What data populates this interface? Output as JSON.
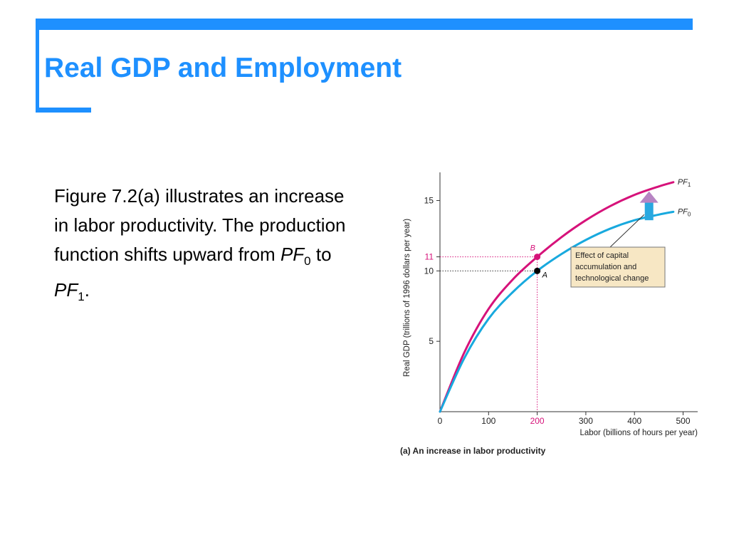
{
  "slide": {
    "title": "Real GDP and Employment",
    "body": {
      "text": "Figure 7.2(a) illustrates an increase in labor productivity. The production function shifts upward from",
      "pf0_base": "PF",
      "pf0_sub": "0",
      "connector": "to",
      "pf1_base": "PF",
      "pf1_sub": "1",
      "end": "."
    }
  },
  "colors": {
    "accent": "#1e90ff",
    "pf1": "#d6127a",
    "pf0": "#18a9de",
    "annotation_fill": "#f7e7c4",
    "arrow_fill": "#29a8e0",
    "arrow_head": "#b784c3"
  },
  "chart_data": {
    "type": "line",
    "caption": "(a) An increase in labor productivity",
    "xlabel": "Labor (billions of hours per year)",
    "ylabel": "Real GDP (trillions of 1996 dollars per year)",
    "xlim": [
      0,
      530
    ],
    "ylim": [
      0,
      17
    ],
    "x_ticks": [
      0,
      100,
      200,
      300,
      400,
      500
    ],
    "y_ticks": [
      5,
      10,
      11,
      15
    ],
    "grid": false,
    "series": [
      {
        "name": "PF1",
        "label_base": "PF",
        "label_sub": "1",
        "color": "#d6127a",
        "points": [
          [
            0,
            0
          ],
          [
            50,
            4.2
          ],
          [
            100,
            7.3
          ],
          [
            150,
            9.4
          ],
          [
            200,
            11
          ],
          [
            250,
            12.4
          ],
          [
            300,
            13.6
          ],
          [
            350,
            14.6
          ],
          [
            400,
            15.4
          ],
          [
            450,
            16.0
          ],
          [
            480,
            16.3
          ]
        ]
      },
      {
        "name": "PF0",
        "label_base": "PF",
        "label_sub": "0",
        "color": "#18a9de",
        "points": [
          [
            0,
            0
          ],
          [
            50,
            3.8
          ],
          [
            100,
            6.6
          ],
          [
            150,
            8.5
          ],
          [
            200,
            10
          ],
          [
            250,
            11.2
          ],
          [
            300,
            12.2
          ],
          [
            350,
            13.0
          ],
          [
            400,
            13.6
          ],
          [
            450,
            14.0
          ],
          [
            480,
            14.2
          ]
        ]
      }
    ],
    "marked_points": [
      {
        "label": "A",
        "x": 200,
        "y": 10,
        "color": "#000000"
      },
      {
        "label": "B",
        "x": 200,
        "y": 11,
        "color": "#d6127a"
      }
    ],
    "highlight": {
      "x": 200,
      "y_a": 10,
      "y_b": 11
    },
    "annotation": {
      "lines": [
        "Effect of capital",
        "accumulation and",
        "technological change"
      ],
      "anchor_x": 420,
      "anchor_y": 14.0
    },
    "shift_arrow": {
      "x": 430,
      "y_from": 13.6,
      "y_to": 15.4
    }
  }
}
